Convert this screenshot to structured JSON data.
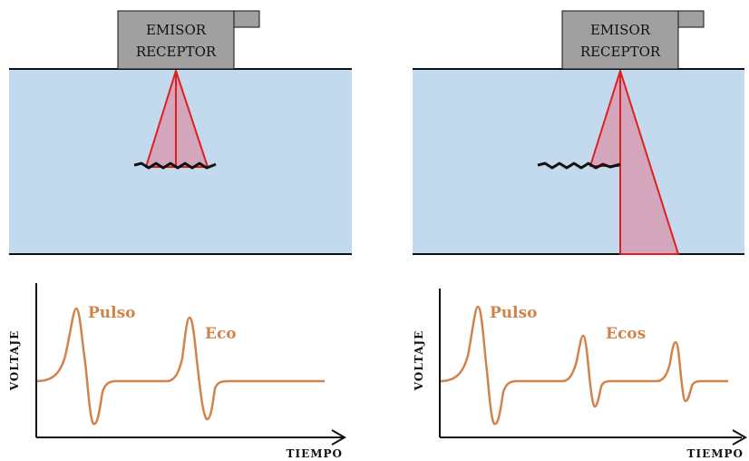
{
  "colors": {
    "material": "#c3daee",
    "surface_line": "#111111",
    "beam": "#e01e1e",
    "beam_fill": "#d3a6bc",
    "transducer": "#a0a0a0",
    "signal": "#d2834a",
    "defect": "#111111"
  },
  "panels": [
    {
      "transducer": {
        "line1": "EMISOR",
        "line2": "RECEPTOR"
      },
      "signal": {
        "pulse_label": "Pulso",
        "echo_label": "Eco",
        "y_axis_label": "VOLTAJE",
        "x_axis_label": "TIEMPO"
      }
    },
    {
      "transducer": {
        "line1": "EMISOR",
        "line2": "RECEPTOR"
      },
      "signal": {
        "pulse_label": "Pulso",
        "echo_label": "Ecos",
        "y_axis_label": "VOLTAJE",
        "x_axis_label": "TIEMPO"
      }
    }
  ]
}
